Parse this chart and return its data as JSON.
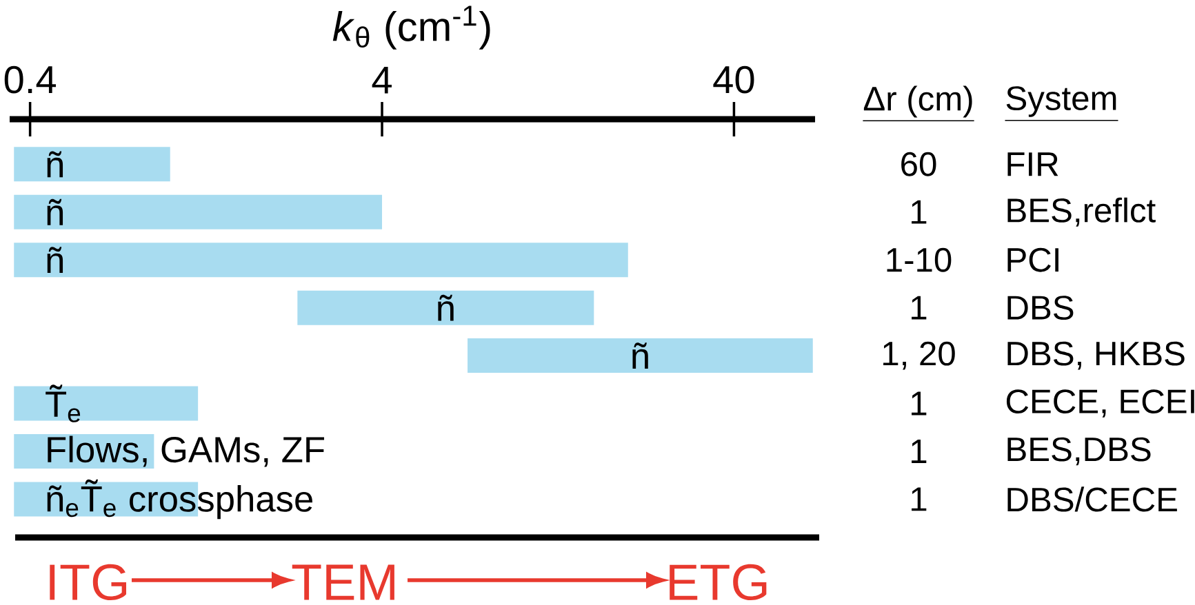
{
  "chart_data": {
    "type": "bar",
    "orientation": "horizontal",
    "xlabel": "*k*$_{θ}$ (cm$^{-1}$)",
    "categories": [
      "ñ",
      "ñ",
      "ñ",
      "ñ",
      "ñ",
      "T̃$_{e}$",
      "Flows, GAMs, ZF",
      "ñ$_{e}$T̃$_{e}$ crossphase"
    ],
    "base": [
      0.36,
      0.36,
      0.36,
      2.3,
      7,
      0.36,
      0.36,
      0.36
    ],
    "values": [
      0.64,
      3.64,
      19.64,
      13.7,
      60,
      0.84,
      0.54,
      0.84
    ],
    "color": "#a8dcf0",
    "log": "x",
    "xlim": [
      0.35,
      68
    ],
    "xticks": [
      0.4,
      4,
      40
    ],
    "annotations": [
      "Δr (cm)",
      "System",
      "60",
      "FIR",
      "1",
      "BES,reflct",
      "1-10",
      "PCI",
      "1",
      "DBS",
      "1, 20",
      "DBS, HKBS",
      "1",
      "CECE, ECEI",
      "1",
      "BES,DBS",
      "1",
      "DBS/CECE",
      "ITG",
      "TEM",
      "ETG"
    ]
  }
}
